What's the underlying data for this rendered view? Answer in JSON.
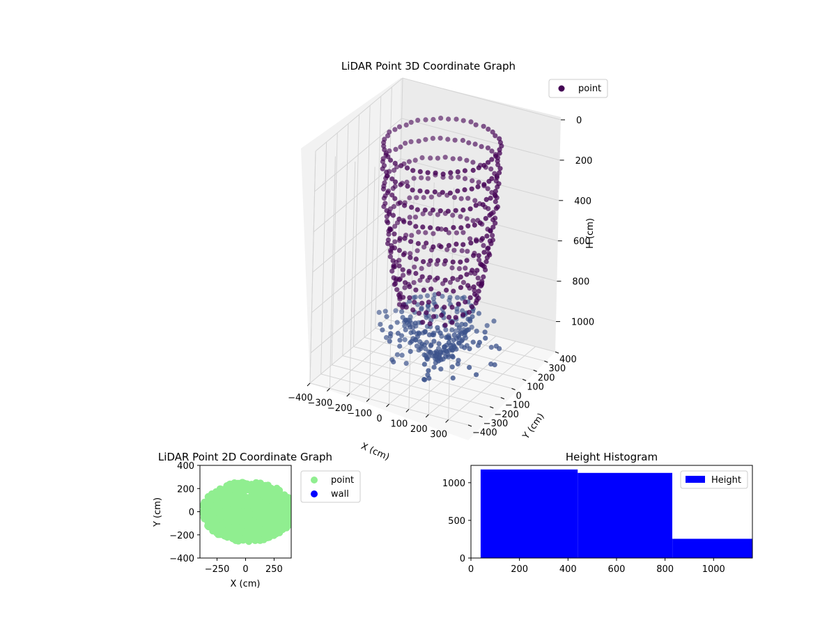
{
  "chart_data": [
    {
      "type": "scatter3d",
      "title": "LiDAR Point 3D Coordinate Graph",
      "xlabel": "X (cm)",
      "ylabel": "Y (cm)",
      "zlabel": "H (cm)",
      "xlim": [
        -400,
        400
      ],
      "ylim": [
        -400,
        400
      ],
      "zlim": [
        1150,
        0
      ],
      "xticks": [
        -400,
        -300,
        -200,
        -100,
        0,
        100,
        200,
        300
      ],
      "yticks": [
        -400,
        -300,
        -200,
        -100,
        0,
        100,
        200,
        300,
        400
      ],
      "zticks": [
        0,
        200,
        400,
        600,
        800,
        1000
      ],
      "xtick_labels": [
        "−400",
        "−300",
        "−200",
        "−100",
        "0",
        "100",
        "200",
        "300"
      ],
      "ytick_labels": [
        "−400",
        "−300",
        "−200",
        "−100",
        "0",
        "100",
        "200",
        "300",
        "400"
      ],
      "ztick_labels": [
        "0",
        "200",
        "400",
        "600",
        "800",
        "1000"
      ],
      "grid": true,
      "legend": {
        "position": "top-right",
        "entries": [
          {
            "label": "point",
            "color": "#440154"
          }
        ]
      },
      "cloud": {
        "shape": "dome",
        "radius_cm": 260,
        "center_cm": [
          20,
          0
        ],
        "height_range_cm": [
          0,
          1100
        ],
        "colors": [
          "#440154",
          "#3b528b"
        ]
      }
    },
    {
      "type": "scatter",
      "title": "LiDAR Point 2D Coordinate Graph",
      "xlabel": "X (cm)",
      "ylabel": "Y (cm)",
      "xlim": [
        -400,
        400
      ],
      "ylim": [
        -400,
        400
      ],
      "xticks": [
        -250,
        0,
        250
      ],
      "yticks": [
        -400,
        -200,
        0,
        200,
        400
      ],
      "xtick_labels": [
        "−250",
        "0",
        "250"
      ],
      "ytick_labels": [
        "−400",
        "−200",
        "0",
        "200",
        "400"
      ],
      "legend": {
        "position": "outside-right",
        "entries": [
          {
            "label": "point",
            "color": "#90ee90"
          },
          {
            "label": "wall",
            "color": "#0000ff"
          }
        ]
      },
      "cloud": {
        "shape": "disc",
        "radius_cm": 260,
        "center_cm": [
          20,
          0
        ],
        "color": "#90ee90"
      }
    },
    {
      "type": "histogram",
      "title": "Height Histogram",
      "xlim": [
        0,
        1160
      ],
      "ylim": [
        0,
        1230
      ],
      "xticks": [
        0,
        200,
        400,
        600,
        800,
        1000
      ],
      "yticks": [
        0,
        500,
        1000
      ],
      "xtick_labels": [
        "0",
        "200",
        "400",
        "600",
        "800",
        "1000"
      ],
      "ytick_labels": [
        "0",
        "500",
        "1000"
      ],
      "bins": [
        {
          "x0": 40,
          "x1": 440,
          "count": 1175
        },
        {
          "x0": 440,
          "x1": 830,
          "count": 1130
        },
        {
          "x0": 830,
          "x1": 1160,
          "count": 255
        }
      ],
      "color": "#0000ff",
      "legend": {
        "position": "upper-right",
        "entries": [
          {
            "label": "Height",
            "color": "#0000ff"
          }
        ]
      }
    }
  ]
}
